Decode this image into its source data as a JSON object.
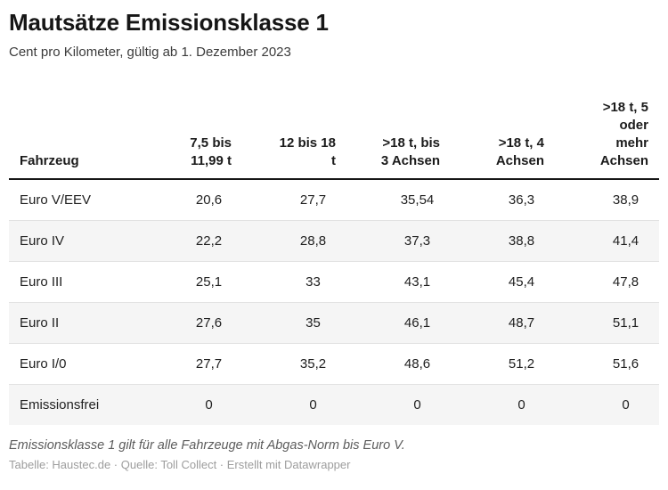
{
  "header": {
    "title": "Mautsätze Emissionsklasse 1",
    "subtitle": "Cent pro Kilometer, gültig ab 1. Dezember 2023"
  },
  "table": {
    "columns": [
      {
        "label": "Fahrzeug"
      },
      {
        "label": "7,5 bis\n11,99 t"
      },
      {
        "label": "12 bis 18\nt"
      },
      {
        "label": ">18 t, bis\n3 Achsen"
      },
      {
        "label": ">18 t, 4\nAchsen"
      },
      {
        "label": ">18 t, 5\noder\nmehr\nAchsen"
      }
    ],
    "rows": [
      {
        "label": "Euro V/EEV",
        "values": [
          "20,6",
          "27,7",
          "35,54",
          "36,3",
          "38,9"
        ]
      },
      {
        "label": "Euro IV",
        "values": [
          "22,2",
          "28,8",
          "37,3",
          "38,8",
          "41,4"
        ]
      },
      {
        "label": "Euro III",
        "values": [
          "25,1",
          "33",
          "43,1",
          "45,4",
          "47,8"
        ]
      },
      {
        "label": "Euro II",
        "values": [
          "27,6",
          "35",
          "46,1",
          "48,7",
          "51,1"
        ]
      },
      {
        "label": "Euro I/0",
        "values": [
          "27,7",
          "35,2",
          "48,6",
          "51,2",
          "51,6"
        ]
      },
      {
        "label": "Emissionsfrei",
        "values": [
          "0",
          "0",
          "0",
          "0",
          "0"
        ]
      }
    ]
  },
  "footer": {
    "note": "Emissionsklasse 1 gilt für alle Fahrzeuge mit Abgas-Norm bis Euro V.",
    "credits": {
      "tabelle_label": "Tabelle: ",
      "tabelle_value": "Haustec.de",
      "separator": " · ",
      "quelle_label": "Quelle: ",
      "quelle_value": "Toll Collect",
      "erstellt_label": "Erstellt mit ",
      "erstellt_value": "Datawrapper"
    }
  },
  "colors": {
    "title_text": "#161616",
    "body_text": "#212121",
    "header_border": "#161616",
    "row_separator": "#e2e2e2",
    "zebra_row": "#f5f5f5",
    "note_text": "#5c5c5c",
    "credits_text": "#9d9d9d"
  },
  "chart_data": {
    "type": "table",
    "title": "Mautsätze Emissionsklasse 1",
    "subtitle": "Cent pro Kilometer, gültig ab 1. Dezember 2023",
    "unit": "Cent pro Kilometer",
    "columns": [
      "Fahrzeug",
      "7,5 bis 11,99 t",
      "12 bis 18 t",
      ">18 t, bis 3 Achsen",
      ">18 t, 4 Achsen",
      ">18 t, 5 oder mehr Achsen"
    ],
    "rows": [
      [
        "Euro V/EEV",
        20.6,
        27.7,
        35.54,
        36.3,
        38.9
      ],
      [
        "Euro IV",
        22.2,
        28.8,
        37.3,
        38.8,
        41.4
      ],
      [
        "Euro III",
        25.1,
        33,
        43.1,
        45.4,
        47.8
      ],
      [
        "Euro II",
        27.6,
        35,
        46.1,
        48.7,
        51.1
      ],
      [
        "Euro I/0",
        27.7,
        35.2,
        48.6,
        51.2,
        51.6
      ],
      [
        "Emissionsfrei",
        0,
        0,
        0,
        0,
        0
      ]
    ],
    "note": "Emissionsklasse 1 gilt für alle Fahrzeuge mit Abgas-Norm bis Euro V.",
    "credits": "Tabelle: Haustec.de · Quelle: Toll Collect · Erstellt mit Datawrapper",
    "layout_hints": {
      "zebra_striping": true,
      "numeric_alignment": "center",
      "header_alignment": "right"
    }
  }
}
